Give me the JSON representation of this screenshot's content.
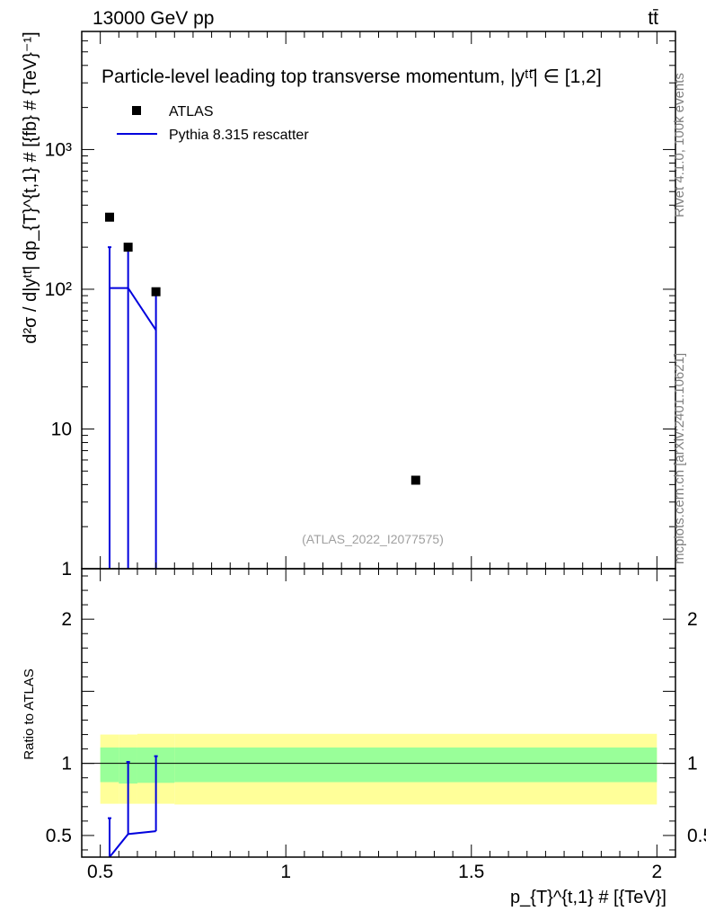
{
  "header": {
    "energy_label": "13000 GeV pp",
    "process_label": "tt̄"
  },
  "side_labels": {
    "rivet": "Rivet 4.1.0,  100k events",
    "mcplots": "mcplots.cern.ch [arXiv:2401.10621]"
  },
  "colors": {
    "data": "#000000",
    "mc": "#0000dd",
    "band_stat": "#99ff99",
    "band_total": "#ffff99"
  },
  "chart_data": [
    {
      "type": "scatter",
      "name": "main",
      "title": "Particle-level leading top transverse momentum, |yᵗᵗ̄| ∈ [1,2]",
      "watermark": "(ATLAS_2022_I2077575)",
      "xlabel": "p_{T}^{t,1} # [{TeV}]",
      "ylabel": "d²σ / d|yᵗᵗ̄| dp_{T}^{t,1} # [{fb} # {TeV}⁻¹]",
      "yscale": "log",
      "xlim": [
        0.45,
        2.05
      ],
      "ylim": [
        1,
        7000
      ],
      "ytick_labels": [
        {
          "value": 1,
          "label": "1"
        },
        {
          "value": 10,
          "label": "10"
        },
        {
          "value": 100,
          "label": "10²"
        },
        {
          "value": 1000,
          "label": "10³"
        }
      ],
      "legend": {
        "position": "top-left",
        "entries": [
          {
            "label": "ATLAS",
            "style": "marker"
          },
          {
            "label": "Pythia 8.315 rescatter",
            "style": "line"
          }
        ]
      },
      "series": [
        {
          "name": "ATLAS",
          "style": "marker",
          "points": [
            {
              "x": 0.525,
              "y": 328
            },
            {
              "x": 0.575,
              "y": 200
            },
            {
              "x": 0.65,
              "y": 96
            },
            {
              "x": 1.35,
              "y": 4.3
            }
          ]
        },
        {
          "name": "Pythia 8.315 rescatter",
          "style": "line",
          "points": [
            {
              "x": 0.525,
              "y": 102,
              "err_up": 200,
              "err_down": 0.5
            },
            {
              "x": 0.575,
              "y": 102,
              "err_up": 200,
              "err_down": 0.5
            },
            {
              "x": 0.65,
              "y": 51,
              "err_up": 100,
              "err_down": 0.5
            }
          ]
        }
      ]
    },
    {
      "type": "line",
      "name": "ratio",
      "xlabel": "p_{T}^{t,1} # [{TeV}]",
      "ylabel": "Ratio to ATLAS",
      "xlim": [
        0.45,
        2.05
      ],
      "ylim": [
        0.35,
        2.35
      ],
      "xtick_labels": [
        {
          "value": 0.5,
          "label": "0.5"
        },
        {
          "value": 1,
          "label": "1"
        },
        {
          "value": 1.5,
          "label": "1.5"
        },
        {
          "value": 2,
          "label": "2"
        }
      ],
      "ytick_labels": [
        {
          "value": 0.5,
          "label": "0.5"
        },
        {
          "value": 1,
          "label": "1"
        },
        {
          "value": 2,
          "label": "2"
        }
      ],
      "reference_line": 1,
      "bands": [
        {
          "name": "total uncertainty",
          "bins": [
            {
              "x0": 0.5,
              "x1": 0.55,
              "lo": 0.72,
              "hi": 1.2
            },
            {
              "x0": 0.55,
              "x1": 0.6,
              "lo": 0.72,
              "hi": 1.2
            },
            {
              "x0": 0.6,
              "x1": 0.7,
              "lo": 0.72,
              "hi": 1.205
            },
            {
              "x0": 0.7,
              "x1": 2.0,
              "lo": 0.715,
              "hi": 1.205
            }
          ]
        },
        {
          "name": "stat uncertainty",
          "bins": [
            {
              "x0": 0.5,
              "x1": 0.55,
              "lo": 0.87,
              "hi": 1.11
            },
            {
              "x0": 0.55,
              "x1": 0.6,
              "lo": 0.86,
              "hi": 1.11
            },
            {
              "x0": 0.6,
              "x1": 0.7,
              "lo": 0.865,
              "hi": 1.11
            },
            {
              "x0": 0.7,
              "x1": 2.0,
              "lo": 0.87,
              "hi": 1.11
            }
          ]
        }
      ],
      "series": [
        {
          "name": "Pythia 8.315 rescatter / ATLAS",
          "points": [
            {
              "x": 0.525,
              "y": 0.31,
              "err_up": 0.62,
              "err_down": 0.31
            },
            {
              "x": 0.575,
              "y": 0.51,
              "err_up": 1.01,
              "err_down": 0.51
            },
            {
              "x": 0.65,
              "y": 0.53,
              "err_up": 1.05,
              "err_down": 0.53
            }
          ]
        }
      ]
    }
  ]
}
